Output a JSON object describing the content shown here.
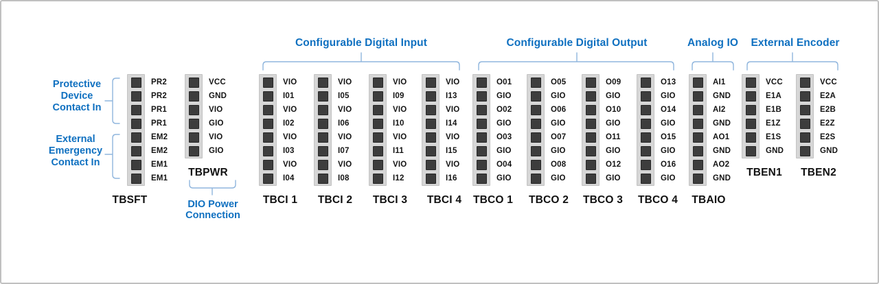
{
  "section_headers": [
    {
      "id": "digital-input",
      "label": "Configurable Digital Input"
    },
    {
      "id": "digital-output",
      "label": "Configurable Digital Output"
    },
    {
      "id": "analog-io",
      "label": "Analog IO"
    },
    {
      "id": "external-encoder",
      "label": "External Encoder"
    }
  ],
  "side_annotations": [
    {
      "id": "protective-device-contact-in",
      "lines": [
        "Protective",
        "Device",
        "Contact In"
      ]
    },
    {
      "id": "external-emergency-contact-in",
      "lines": [
        "External",
        "Emergency",
        "Contact In"
      ]
    }
  ],
  "power_annotation": {
    "lines": [
      "DIO Power",
      "Connection"
    ]
  },
  "terminal_blocks": [
    {
      "name": "TBSFT",
      "pins": [
        "PR2",
        "PR2",
        "PR1",
        "PR1",
        "EM2",
        "EM2",
        "EM1",
        "EM1"
      ]
    },
    {
      "name": "TBPWR",
      "pins": [
        "VCC",
        "GND",
        "VIO",
        "GIO",
        "VIO",
        "GIO"
      ]
    },
    {
      "name": "TBCI 1",
      "pins": [
        "VIO",
        "I01",
        "VIO",
        "I02",
        "VIO",
        "I03",
        "VIO",
        "I04"
      ]
    },
    {
      "name": "TBCI 2",
      "pins": [
        "VIO",
        "I05",
        "VIO",
        "I06",
        "VIO",
        "I07",
        "VIO",
        "I08"
      ]
    },
    {
      "name": "TBCI 3",
      "pins": [
        "VIO",
        "I09",
        "VIO",
        "I10",
        "VIO",
        "I11",
        "VIO",
        "I12"
      ]
    },
    {
      "name": "TBCI 4",
      "pins": [
        "VIO",
        "I13",
        "VIO",
        "I14",
        "VIO",
        "I15",
        "VIO",
        "I16"
      ]
    },
    {
      "name": "TBCO 1",
      "pins": [
        "O01",
        "GIO",
        "O02",
        "GIO",
        "O03",
        "GIO",
        "O04",
        "GIO"
      ]
    },
    {
      "name": "TBCO 2",
      "pins": [
        "O05",
        "GIO",
        "O06",
        "GIO",
        "O07",
        "GIO",
        "O08",
        "GIO"
      ]
    },
    {
      "name": "TBCO 3",
      "pins": [
        "O09",
        "GIO",
        "O10",
        "GIO",
        "O11",
        "GIO",
        "O12",
        "GIO"
      ]
    },
    {
      "name": "TBCO 4",
      "pins": [
        "O13",
        "GIO",
        "O14",
        "GIO",
        "O15",
        "GIO",
        "O16",
        "GIO"
      ]
    },
    {
      "name": "TBAIO",
      "pins": [
        "AI1",
        "GND",
        "AI2",
        "GND",
        "AO1",
        "GND",
        "AO2",
        "GND"
      ]
    },
    {
      "name": "TBEN1",
      "pins": [
        "VCC",
        "E1A",
        "E1B",
        "E1Z",
        "E1S",
        "GND"
      ]
    },
    {
      "name": "TBEN2",
      "pins": [
        "VCC",
        "E2A",
        "E2B",
        "E2Z",
        "E2S",
        "GND"
      ]
    }
  ],
  "colors": {
    "header_text": "#0f70c0",
    "bracket_line": "#8fb5dd",
    "strip_background": "#d6d6d6",
    "pin_contact": "#3d3d3d",
    "canvas_border": "#c0c0c0"
  }
}
